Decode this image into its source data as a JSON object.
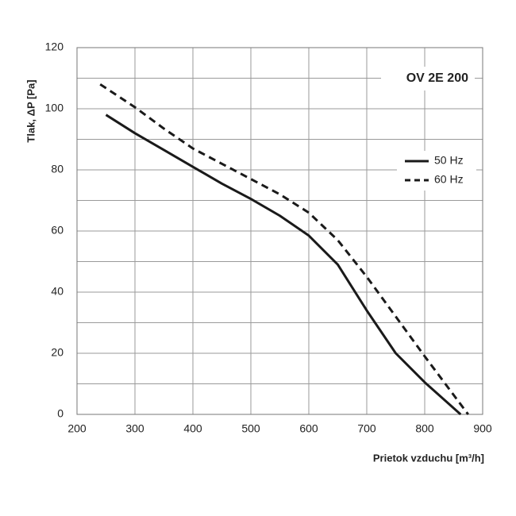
{
  "chart_data": {
    "type": "line",
    "title": "OV 2E 200",
    "x_label": "Prietok vzduchu [m³/h]",
    "y_label": "Tlak, ΔP [Pa]",
    "xlim": [
      200,
      900
    ],
    "xticks": [
      200,
      300,
      400,
      500,
      600,
      700,
      800,
      900
    ],
    "ylim": [
      0,
      120
    ],
    "yticks": [
      0,
      20,
      40,
      60,
      80,
      100,
      120
    ],
    "y_minor_grid": [
      10,
      30,
      50,
      70,
      90,
      110
    ],
    "grid": true,
    "legend": "right",
    "series": [
      {
        "name": "50 Hz",
        "color": "#1a1a1a",
        "dashed": false,
        "x": [
          250,
          300,
          350,
          400,
          450,
          500,
          550,
          600,
          650,
          700,
          750,
          800,
          862
        ],
        "values": [
          98,
          92,
          86.5,
          81,
          75.5,
          70.5,
          65,
          58.5,
          49,
          34,
          20,
          10.5,
          0
        ]
      },
      {
        "name": "60 Hz",
        "color": "#1a1a1a",
        "dashed": true,
        "x": [
          240,
          300,
          350,
          400,
          450,
          500,
          550,
          600,
          650,
          700,
          750,
          800,
          875
        ],
        "values": [
          108,
          100.5,
          93.5,
          87,
          82,
          77,
          72,
          66,
          57,
          45,
          32,
          19,
          0
        ]
      }
    ]
  }
}
